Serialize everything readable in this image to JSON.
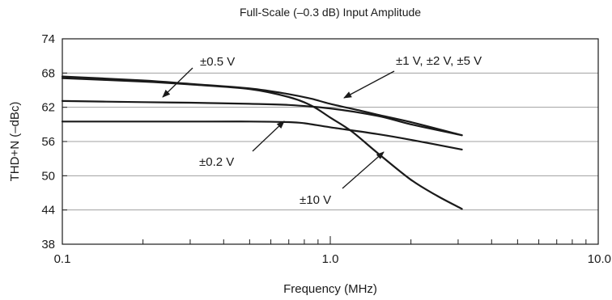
{
  "chart_data": {
    "type": "line",
    "title": "Full-Scale (–0.3 dB) Input Amplitude",
    "xlabel": "Frequency (MHz)",
    "ylabel": "THD+N (–dBc)",
    "xscale": "log",
    "xlim": [
      0.1,
      10.0
    ],
    "ylim": [
      38,
      74
    ],
    "x_ticks": [
      0.1,
      1.0,
      10.0
    ],
    "x_tick_labels": [
      "0.1",
      "1.0",
      "10.0"
    ],
    "y_ticks": [
      38,
      44,
      50,
      56,
      62,
      68,
      74
    ],
    "y_tick_labels": [
      "38",
      "44",
      "50",
      "56",
      "62",
      "68",
      "74"
    ],
    "grid": "horizontal",
    "legend": "none",
    "series": [
      {
        "name": "±0.5 V",
        "x": [
          0.1,
          0.2,
          0.3,
          0.5,
          0.7,
          1.0,
          1.5,
          2.0,
          3.1
        ],
        "y": [
          63.1,
          62.9,
          62.8,
          62.6,
          62.4,
          61.8,
          60.5,
          59.0,
          57.1
        ]
      },
      {
        "name": "±1 V, ±2 V, ±5 V",
        "x": [
          0.1,
          0.2,
          0.3,
          0.5,
          0.7,
          0.85,
          1.0,
          1.3,
          1.5,
          2.0,
          3.1
        ],
        "y": [
          67.4,
          66.7,
          66.1,
          65.3,
          64.3,
          63.5,
          62.6,
          61.4,
          60.7,
          59.4,
          57.1
        ]
      },
      {
        "name": "±0.2 V",
        "x": [
          0.1,
          0.3,
          0.5,
          0.7,
          0.8,
          1.0,
          1.5,
          2.0,
          3.1
        ],
        "y": [
          59.5,
          59.5,
          59.5,
          59.4,
          59.2,
          58.5,
          57.3,
          56.3,
          54.6
        ]
      },
      {
        "name": "±10 V",
        "x": [
          0.1,
          0.2,
          0.3,
          0.5,
          0.7,
          0.85,
          1.0,
          1.2,
          1.5,
          2.0,
          2.5,
          3.1
        ],
        "y": [
          67.1,
          66.5,
          66.0,
          65.2,
          63.8,
          62.3,
          60.2,
          57.8,
          54.0,
          49.3,
          46.5,
          44.2
        ]
      }
    ],
    "annotations": [
      {
        "text": "±0.5 V",
        "series": 0
      },
      {
        "text": "±1 V, ±2 V, ±5 V",
        "series": 1
      },
      {
        "text": "±0.2 V",
        "series": 2
      },
      {
        "text": "±10 V",
        "series": 3
      }
    ],
    "colors": {
      "line": "#1a1a1a",
      "grid": "#a0a0a0",
      "axis": "#1a1a1a"
    }
  }
}
